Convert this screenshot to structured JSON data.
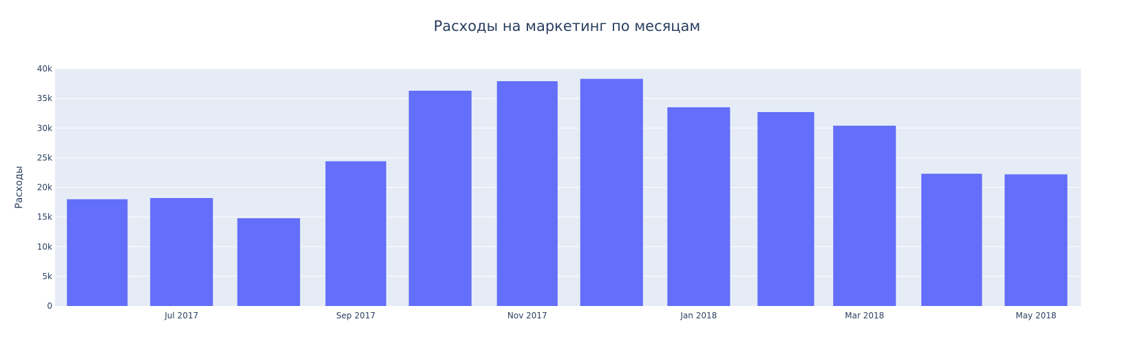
{
  "chart_data": {
    "type": "bar",
    "title": "Расходы на маркетинг по месяцам",
    "ylabel": "Расходы",
    "xlabel": "",
    "ylim": [
      0,
      40000
    ],
    "y_ticks": [
      0,
      5000,
      10000,
      15000,
      20000,
      25000,
      30000,
      35000,
      40000
    ],
    "y_tick_labels": [
      "0",
      "5k",
      "10k",
      "15k",
      "20k",
      "25k",
      "30k",
      "35k",
      "40k"
    ],
    "x": [
      "2017-06",
      "2017-07",
      "2017-08",
      "2017-09",
      "2017-10",
      "2017-11",
      "2017-12",
      "2018-01",
      "2018-02",
      "2018-03",
      "2018-04",
      "2018-05"
    ],
    "x_tick_labels": [
      "Jul 2017",
      "Sep 2017",
      "Nov 2017",
      "Jan 2018",
      "Mar 2018",
      "May 2018"
    ],
    "x_tick_positions": [
      "2017-07",
      "2017-09",
      "2017-11",
      "2018-01",
      "2018-03",
      "2018-05"
    ],
    "values": [
      18000,
      18200,
      14800,
      24400,
      36300,
      37900,
      38300,
      33500,
      32700,
      30400,
      22300,
      22200
    ],
    "grid": true,
    "colors": {
      "bar": "#636efa",
      "plot_bg": "#e5ecf6",
      "grid": "#ffffff",
      "text": "#2a3f5f"
    }
  }
}
